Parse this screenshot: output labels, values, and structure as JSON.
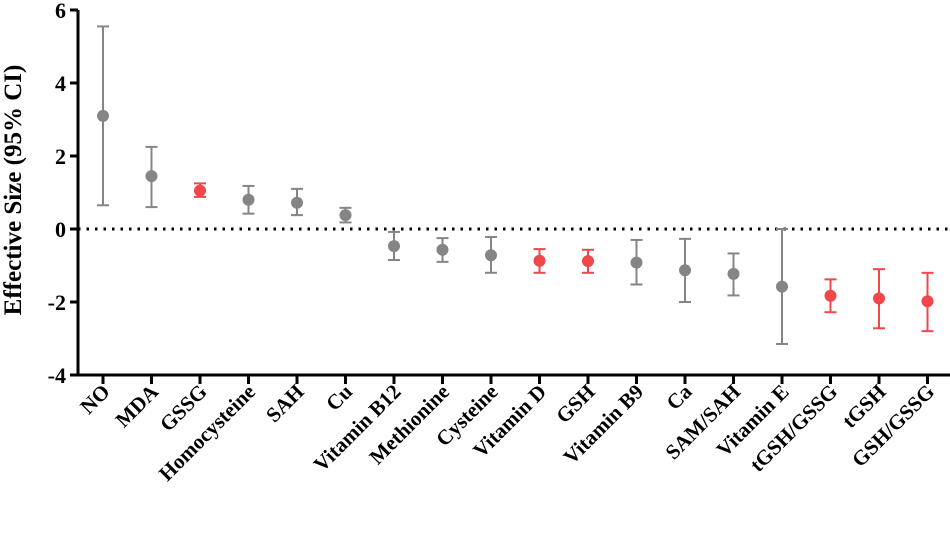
{
  "chart_data": {
    "type": "scatter",
    "title": "",
    "xlabel": "",
    "ylabel": "Effective Size (95% CI)",
    "ylim": [
      -4,
      6
    ],
    "yticks": [
      -4,
      -2,
      0,
      2,
      4,
      6
    ],
    "reference_line": 0,
    "colors": {
      "gray": "#858585",
      "red": "#f0474b",
      "axis": "#000000"
    },
    "points": [
      {
        "label": "NO",
        "value": 3.1,
        "lower": 0.65,
        "upper": 5.55,
        "color": "gray"
      },
      {
        "label": "MDA",
        "value": 1.45,
        "lower": 0.6,
        "upper": 2.25,
        "color": "gray"
      },
      {
        "label": "GSSG",
        "value": 1.05,
        "lower": 0.88,
        "upper": 1.25,
        "color": "red"
      },
      {
        "label": "Homocysteine",
        "value": 0.8,
        "lower": 0.42,
        "upper": 1.18,
        "color": "gray"
      },
      {
        "label": "SAH",
        "value": 0.72,
        "lower": 0.38,
        "upper": 1.1,
        "color": "gray"
      },
      {
        "label": "Cu",
        "value": 0.38,
        "lower": 0.18,
        "upper": 0.58,
        "color": "gray"
      },
      {
        "label": "Vitamin B12",
        "value": -0.47,
        "lower": -0.85,
        "upper": -0.08,
        "color": "gray"
      },
      {
        "label": "Methionine",
        "value": -0.57,
        "lower": -0.9,
        "upper": -0.25,
        "color": "gray"
      },
      {
        "label": "Cysteine",
        "value": -0.72,
        "lower": -1.2,
        "upper": -0.22,
        "color": "gray"
      },
      {
        "label": "Vitamin D",
        "value": -0.87,
        "lower": -1.2,
        "upper": -0.55,
        "color": "red"
      },
      {
        "label": "GSH",
        "value": -0.88,
        "lower": -1.2,
        "upper": -0.57,
        "color": "red"
      },
      {
        "label": "Vitamin B9",
        "value": -0.92,
        "lower": -1.52,
        "upper": -0.3,
        "color": "gray"
      },
      {
        "label": "Ca",
        "value": -1.13,
        "lower": -2.0,
        "upper": -0.27,
        "color": "gray"
      },
      {
        "label": "SAM/SAH",
        "value": -1.23,
        "lower": -1.82,
        "upper": -0.67,
        "color": "gray"
      },
      {
        "label": "Vitamin E",
        "value": -1.58,
        "lower": -3.15,
        "upper": 0.0,
        "color": "gray"
      },
      {
        "label": "tGSH/GSSG",
        "value": -1.83,
        "lower": -2.28,
        "upper": -1.38,
        "color": "red"
      },
      {
        "label": "tGSH",
        "value": -1.9,
        "lower": -2.72,
        "upper": -1.1,
        "color": "red"
      },
      {
        "label": "GSH/GSSG",
        "value": -1.98,
        "lower": -2.8,
        "upper": -1.2,
        "color": "red"
      }
    ]
  }
}
